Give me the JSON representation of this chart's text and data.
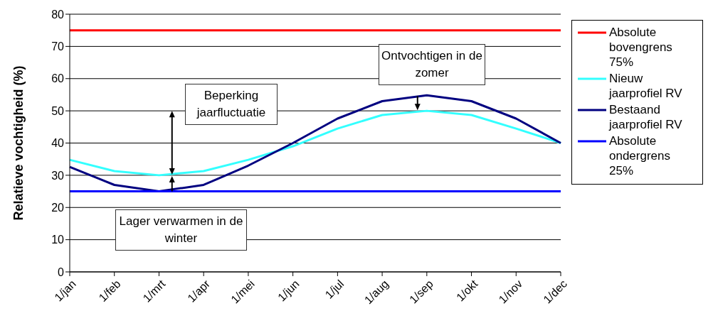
{
  "chart_data": {
    "type": "line",
    "ylabel": "Relatieve vochtigheid (%)",
    "categories": [
      "1/jan",
      "1/feb",
      "1/mrt",
      "1/apr",
      "1/mei",
      "1/jun",
      "1/jul",
      "1/aug",
      "1/sep",
      "1/okt",
      "1/nov",
      "1/dec"
    ],
    "series": [
      {
        "name": "Absolute bovengrens 75%",
        "color": "#ff0000",
        "values": [
          75,
          75,
          75,
          75,
          75,
          75,
          75,
          75,
          75,
          75,
          75,
          75
        ]
      },
      {
        "name": "Nieuw jaarprofiel RV",
        "color": "#33ffff",
        "values": [
          34.8,
          31.3,
          30,
          31.3,
          34.8,
          39,
          44.5,
          48.7,
          50,
          48.7,
          44.5,
          40
        ]
      },
      {
        "name": "Bestaand jaarprofiel RV",
        "color": "#000080",
        "values": [
          32.6,
          27,
          25,
          27,
          33,
          40,
          47.6,
          53,
          54.8,
          53,
          47.6,
          40
        ]
      },
      {
        "name": "Absolute ondergrens 25%",
        "color": "#0000ff",
        "values": [
          25,
          25,
          25,
          25,
          25,
          25,
          25,
          25,
          25,
          25,
          25,
          25
        ]
      }
    ],
    "ylim": [
      0,
      80
    ],
    "yticks": [
      0,
      10,
      20,
      30,
      40,
      50,
      60,
      70,
      80
    ],
    "grid": "y",
    "legend": "right",
    "annotations": [
      "Beperking jaarfluctuatie",
      "Lager verwarmen in de winter",
      "Ontvochtigen in de zomer"
    ]
  }
}
